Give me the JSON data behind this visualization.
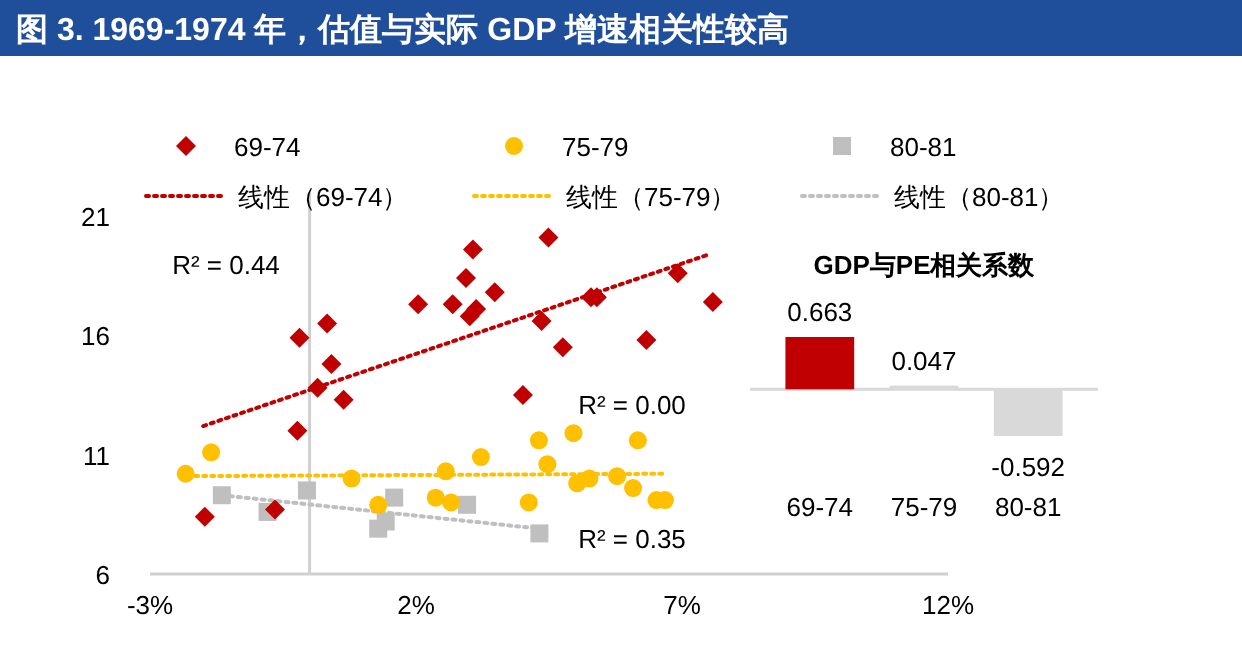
{
  "chart_data": [
    {
      "type": "scatter",
      "title": "图 3. 1969-1974 年，估值与实际 GDP 增速相关性较高",
      "xlim": [
        -3,
        12
      ],
      "xticks": [
        {
          "value": -3,
          "label": "-3%"
        },
        {
          "value": 2,
          "label": "2%"
        },
        {
          "value": 7,
          "label": "7%"
        },
        {
          "value": 12,
          "label": "12%"
        }
      ],
      "ylim": [
        6,
        21
      ],
      "yticks": [
        6,
        11,
        16,
        21
      ],
      "legend": "top",
      "annotations": [
        "R² = 0.44",
        "R² = 0.00",
        "R² = 0.35"
      ],
      "series": [
        {
          "name": "69-74",
          "color": "#c00000",
          "marker": "diamond",
          "x": [
            -1.97,
            -0.65,
            -0.23,
            -0.19,
            0.15,
            0.33,
            0.41,
            0.64,
            2.04,
            2.69,
            2.94,
            3.07,
            3.01,
            3.13,
            3.48,
            4.01,
            4.49,
            4.36,
            4.76,
            5.29,
            5.4,
            6.33,
            6.92,
            7.58
          ],
          "values": [
            8.4,
            8.7,
            12.0,
            15.9,
            13.8,
            16.5,
            14.8,
            13.3,
            17.3,
            17.3,
            18.4,
            19.6,
            16.8,
            17.1,
            17.8,
            13.5,
            20.1,
            16.6,
            15.5,
            17.6,
            17.6,
            15.8,
            18.6,
            17.4
          ]
        },
        {
          "name": "75-79",
          "color": "#ffc000",
          "marker": "circle",
          "x": [
            -2.33,
            -1.85,
            0.79,
            1.29,
            2.37,
            2.56,
            2.66,
            3.22,
            4.12,
            4.31,
            4.47,
            4.96,
            5.03,
            5.26,
            5.78,
            6.08,
            6.17,
            6.52,
            6.68
          ],
          "values": [
            10.2,
            11.1,
            10.0,
            8.9,
            9.2,
            10.3,
            9.0,
            10.9,
            9.0,
            11.6,
            10.6,
            11.9,
            9.8,
            10.0,
            10.1,
            9.6,
            11.6,
            9.1,
            9.1
          ]
        },
        {
          "name": "80-81",
          "color": "#bfbfbf",
          "marker": "square",
          "x": [
            -1.65,
            -0.79,
            -0.05,
            1.29,
            1.43,
            1.59,
            2.96,
            4.32
          ],
          "values": [
            9.3,
            8.6,
            9.5,
            7.9,
            8.2,
            9.2,
            8.9,
            7.7
          ]
        },
        {
          "type": "line",
          "name": "线性（69-74）",
          "color": "#c00000",
          "line_style": "dotted",
          "x": [
            -2.0,
            7.52
          ],
          "values": [
            12.2,
            19.4
          ]
        },
        {
          "type": "line",
          "name": "线性（75-79）",
          "color": "#ffc000",
          "line_style": "dotted",
          "x": [
            -2.3,
            6.64
          ],
          "values": [
            10.1,
            10.2
          ]
        },
        {
          "type": "line",
          "name": "线性（80-81）",
          "color": "#bfbfbf",
          "line_style": "dotted",
          "x": [
            -1.65,
            4.32
          ],
          "values": [
            9.3,
            7.9
          ]
        }
      ]
    },
    {
      "type": "bar",
      "title": "GDP与PE相关系数",
      "categories": [
        "69-74",
        "75-79",
        "80-81"
      ],
      "values": [
        0.663,
        0.047,
        -0.592
      ],
      "colors": [
        "#c00000",
        "#d9d9d9",
        "#d9d9d9"
      ],
      "data_labels": true
    }
  ]
}
